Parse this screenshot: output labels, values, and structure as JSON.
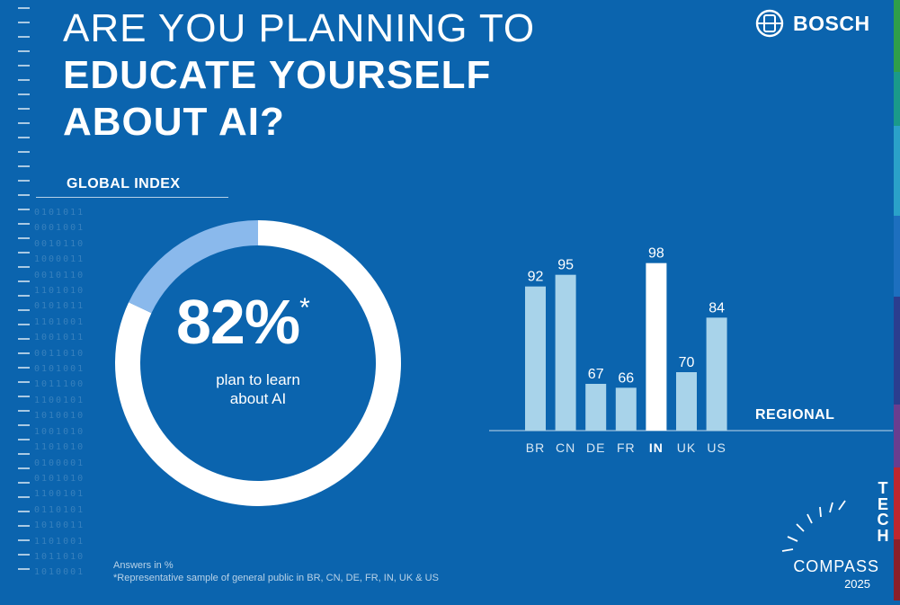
{
  "title": {
    "line1": "ARE YOU PLANNING TO",
    "line2": "EDUCATE YOURSELF",
    "line3": "ABOUT AI?"
  },
  "brand": {
    "name": "BOSCH",
    "icon": "bosch-armature-icon"
  },
  "global": {
    "label": "GLOBAL INDEX",
    "value_text": "82%",
    "asterisk": "*",
    "caption_line1": "plan to learn",
    "caption_line2": "about AI"
  },
  "chart_data": [
    {
      "type": "pie",
      "title": "GLOBAL INDEX",
      "slices": [
        {
          "label": "plan to learn about AI",
          "value": 82,
          "color": "#ffffff"
        },
        {
          "label": "",
          "value": 18,
          "color": "#8ab9ec"
        }
      ],
      "center_label": "82%*"
    },
    {
      "type": "bar",
      "title": "REGIONAL",
      "categories": [
        "BR",
        "CN",
        "DE",
        "FR",
        "IN",
        "UK",
        "US"
      ],
      "values": [
        92,
        95,
        67,
        66,
        98,
        70,
        84
      ],
      "highlight": "IN",
      "ylim": [
        0,
        100
      ],
      "grid": false,
      "unit": "%"
    }
  ],
  "regional": {
    "label": "REGIONAL"
  },
  "colors": {
    "background": "#0b64ae",
    "bar": "#a8d3ea",
    "bar_highlight": "#ffffff",
    "donut_rest": "#8ab9ec"
  },
  "footnote": {
    "line1": "Answers in %",
    "line2": "*Representative sample of general public in BR, CN, DE, FR, IN, UK & US"
  },
  "tech_compass": {
    "letters": [
      "T",
      "E",
      "C",
      "H"
    ],
    "word": "COMPASS",
    "year": "2025"
  },
  "binary_rows": [
    "0101011",
    "0001001",
    "0010110",
    "1000011",
    "0010110",
    "1101010",
    "0101011",
    "1101001",
    "1001011",
    "0011010",
    "0101001",
    "1011100",
    "1100101",
    "1010010",
    "1001010",
    "1101010",
    "0100001",
    "0101010",
    "1100101",
    "0110101",
    "1010011",
    "1101001",
    "1011010",
    "1010001"
  ]
}
